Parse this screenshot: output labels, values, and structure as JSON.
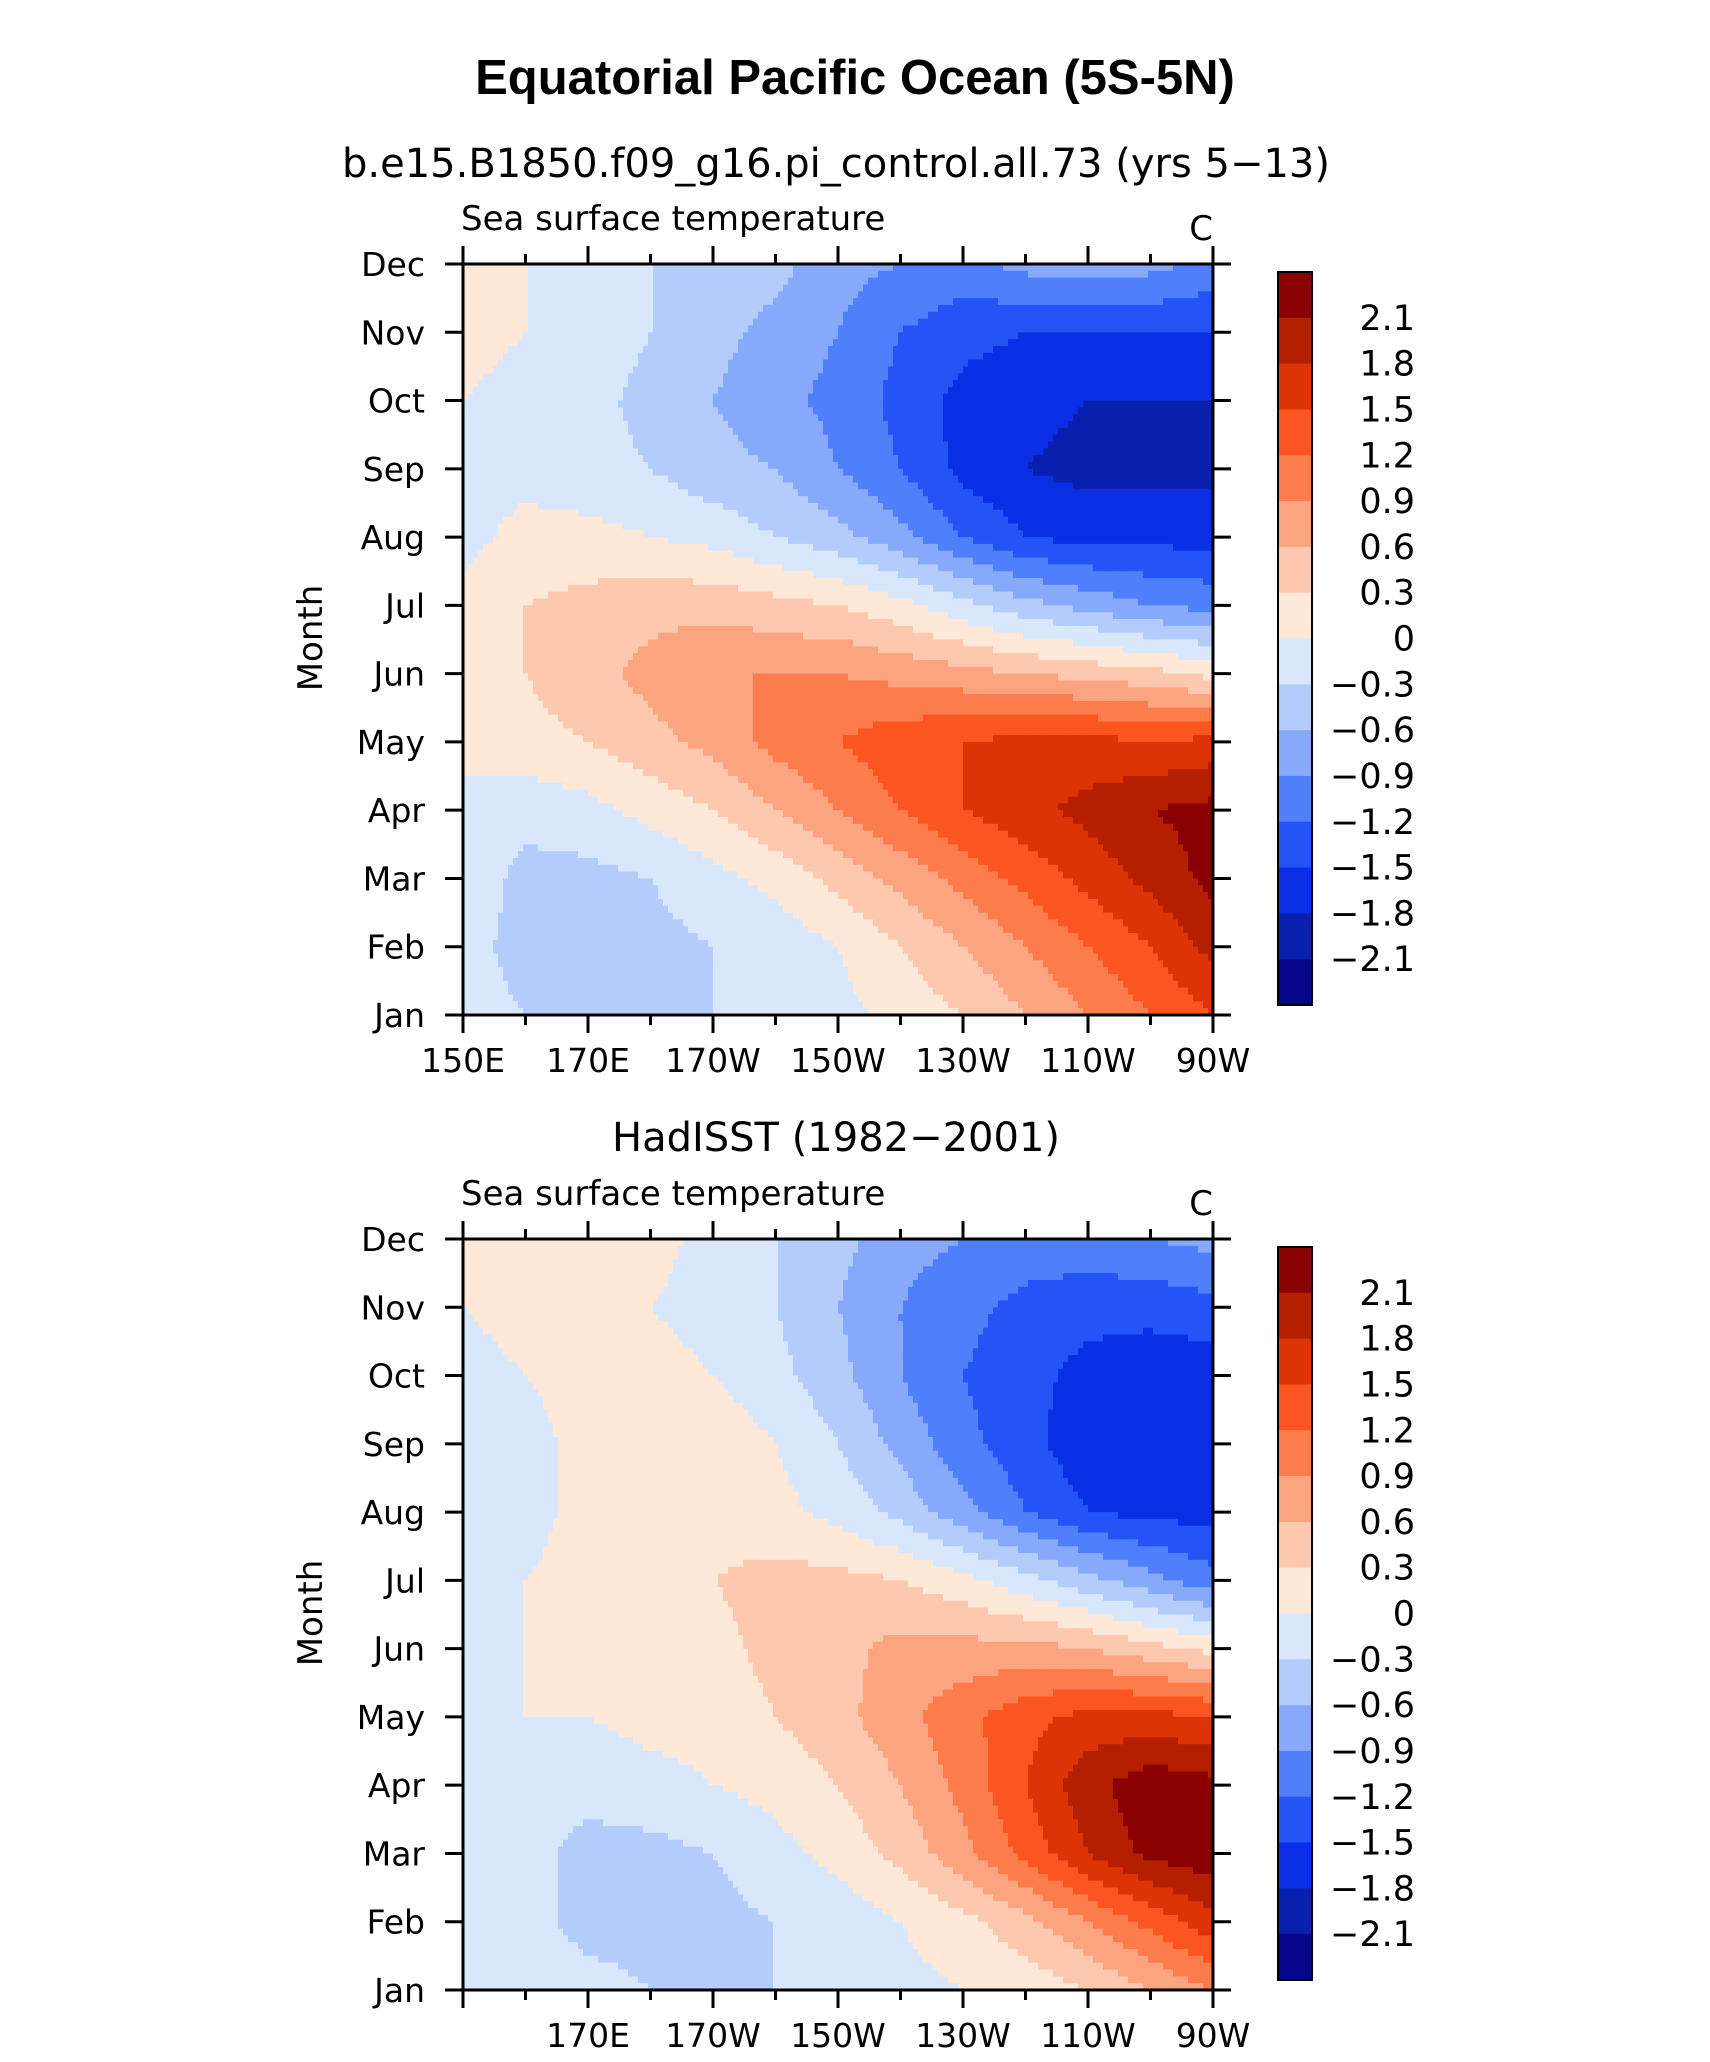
{
  "figure": {
    "title": "Equatorial Pacific Ocean (5S-5N)"
  },
  "colorbar": {
    "levels": [
      -2.1,
      -1.8,
      -1.5,
      -1.2,
      -0.9,
      -0.6,
      -0.3,
      0,
      0.3,
      0.6,
      0.9,
      1.2,
      1.5,
      1.8,
      2.1
    ],
    "labels": [
      "2.1",
      "1.8",
      "1.5",
      "1.2",
      "0.9",
      "0.6",
      "0.3",
      "0",
      "−0.3",
      "−0.6",
      "−0.9",
      "−1.2",
      "−1.5",
      "−1.8",
      "−2.1"
    ],
    "colors_top_to_bottom": [
      "#8b0000",
      "#b41f00",
      "#dc3404",
      "#fb5522",
      "#fd7c4c",
      "#fca47f",
      "#fdc8ad",
      "#fee8d8",
      "#d8e7fc",
      "#b4ccfb",
      "#86a9fb",
      "#4f7ffb",
      "#2553f5",
      "#0a2ee4",
      "#0820ad",
      "#05058a"
    ]
  },
  "panels": [
    {
      "title": "b.e15.B1850.f09_g16.pi_control.all.73 (yrs 5−13)",
      "left_string": "Sea surface temperature",
      "right_string": "C",
      "ylabel": "Month",
      "ytick_labels": [
        "Jan",
        "Feb",
        "Mar",
        "Apr",
        "May",
        "Jun",
        "Jul",
        "Aug",
        "Sep",
        "Oct",
        "Nov",
        "Dec"
      ],
      "xtick_labels": [
        "150E",
        "170E",
        "170W",
        "150W",
        "130W",
        "110W",
        "90W"
      ]
    },
    {
      "title": "HadISST (1982−2001)",
      "left_string": "Sea surface temperature",
      "right_string": "C",
      "ylabel": "Month",
      "ytick_labels": [
        "Jan",
        "Feb",
        "Mar",
        "Apr",
        "May",
        "Jun",
        "Jul",
        "Aug",
        "Sep",
        "Oct",
        "Nov",
        "Dec"
      ],
      "xtick_labels": [
        "",
        "170E",
        "170W",
        "150W",
        "130W",
        "110W",
        "90W"
      ]
    }
  ],
  "chart_data": [
    {
      "type": "heatmap",
      "title": "b.e15.B1850.f09_g16.pi_control.all.73 (yrs 5−13)",
      "variable": "Sea surface temperature",
      "units": "C",
      "xlabel": "",
      "ylabel": "Month",
      "x": [
        150,
        160,
        170,
        180,
        190,
        200,
        210,
        220,
        230,
        240,
        250,
        260,
        270
      ],
      "x_labels_deg": "150=150E, 170=170E, 190=170W, 210=150W, 230=130W, 250=110W, 270=90W",
      "y": [
        "Jan",
        "Feb",
        "Mar",
        "Apr",
        "May",
        "Jun",
        "Jul",
        "Aug",
        "Sep",
        "Oct",
        "Nov",
        "Dec"
      ],
      "xlim": [
        150,
        270
      ],
      "z": [
        [
          -0.2,
          -0.3,
          -0.3,
          -0.3,
          -0.3,
          -0.2,
          -0.1,
          0.1,
          0.3,
          0.6,
          0.9,
          1.2,
          1.5
        ],
        [
          -0.2,
          -0.4,
          -0.4,
          -0.4,
          -0.3,
          -0.2,
          0.0,
          0.3,
          0.6,
          0.9,
          1.2,
          1.5,
          1.9
        ],
        [
          -0.1,
          -0.4,
          -0.4,
          -0.3,
          -0.1,
          0.1,
          0.4,
          0.7,
          1.0,
          1.3,
          1.6,
          1.9,
          2.2
        ],
        [
          -0.1,
          -0.2,
          -0.1,
          0.1,
          0.3,
          0.6,
          0.9,
          1.2,
          1.5,
          1.7,
          1.9,
          2.1,
          2.2
        ],
        [
          0.1,
          0.2,
          0.3,
          0.5,
          0.7,
          1.0,
          1.2,
          1.4,
          1.5,
          1.6,
          1.6,
          1.5,
          1.6
        ],
        [
          0.1,
          0.3,
          0.5,
          0.7,
          0.9,
          0.9,
          0.9,
          0.8,
          0.7,
          0.6,
          0.5,
          0.4,
          0.2
        ],
        [
          0.1,
          0.3,
          0.4,
          0.5,
          0.5,
          0.4,
          0.3,
          0.1,
          -0.2,
          -0.5,
          -0.7,
          -0.9,
          -1.0
        ],
        [
          -0.1,
          0.1,
          0.1,
          0.0,
          -0.1,
          -0.3,
          -0.5,
          -0.8,
          -1.2,
          -1.5,
          -1.6,
          -1.6,
          -1.6
        ],
        [
          -0.1,
          -0.1,
          -0.2,
          -0.3,
          -0.5,
          -0.6,
          -0.9,
          -1.2,
          -1.6,
          -1.8,
          -1.9,
          -1.9,
          -1.9
        ],
        [
          0.0,
          -0.1,
          -0.2,
          -0.4,
          -0.6,
          -0.8,
          -1.0,
          -1.3,
          -1.6,
          -1.7,
          -1.8,
          -1.8,
          -1.8
        ],
        [
          0.1,
          0.0,
          -0.1,
          -0.3,
          -0.5,
          -0.7,
          -0.9,
          -1.2,
          -1.4,
          -1.5,
          -1.5,
          -1.5,
          -1.5
        ],
        [
          0.1,
          0.0,
          -0.2,
          -0.3,
          -0.4,
          -0.5,
          -0.8,
          -0.9,
          -1.0,
          -0.8,
          -0.7,
          -0.8,
          -1.0
        ]
      ]
    },
    {
      "type": "heatmap",
      "title": "HadISST (1982−2001)",
      "variable": "Sea surface temperature",
      "units": "C",
      "xlabel": "",
      "ylabel": "Month",
      "x": [
        150,
        160,
        170,
        180,
        190,
        200,
        210,
        220,
        230,
        240,
        250,
        260,
        270
      ],
      "x_labels_deg": "170=170E, 190=170W, 210=150W, 230=130W, 250=110W, 270=90W",
      "y": [
        "Jan",
        "Feb",
        "Mar",
        "Apr",
        "May",
        "Jun",
        "Jul",
        "Aug",
        "Sep",
        "Oct",
        "Nov",
        "Dec"
      ],
      "xlim": [
        150,
        270
      ],
      "z": [
        [
          0.0,
          -0.1,
          -0.2,
          -0.3,
          -0.3,
          -0.3,
          -0.2,
          -0.1,
          0.0,
          0.1,
          0.3,
          0.6,
          0.9
        ],
        [
          -0.1,
          -0.2,
          -0.4,
          -0.4,
          -0.4,
          -0.3,
          -0.2,
          0.0,
          0.2,
          0.5,
          0.9,
          1.3,
          1.7
        ],
        [
          -0.1,
          -0.2,
          -0.4,
          -0.4,
          -0.3,
          -0.1,
          0.1,
          0.4,
          0.8,
          1.3,
          1.8,
          2.2,
          2.3
        ],
        [
          -0.1,
          -0.2,
          -0.2,
          -0.1,
          0.0,
          0.1,
          0.3,
          0.6,
          1.0,
          1.5,
          2.0,
          2.3,
          2.2
        ],
        [
          -0.1,
          0.0,
          0.0,
          0.1,
          0.1,
          0.3,
          0.5,
          0.8,
          1.1,
          1.4,
          1.6,
          1.6,
          1.5
        ],
        [
          -0.1,
          0.0,
          0.1,
          0.2,
          0.2,
          0.4,
          0.5,
          0.7,
          0.7,
          0.7,
          0.6,
          0.4,
          0.2
        ],
        [
          -0.1,
          0.0,
          0.1,
          0.2,
          0.3,
          0.4,
          0.4,
          0.3,
          0.1,
          -0.2,
          -0.5,
          -0.8,
          -1.1
        ],
        [
          -0.2,
          -0.1,
          0.1,
          0.2,
          0.2,
          0.1,
          -0.1,
          -0.4,
          -0.8,
          -1.2,
          -1.5,
          -1.6,
          -1.6
        ],
        [
          -0.2,
          -0.1,
          0.1,
          0.3,
          0.2,
          0.0,
          -0.3,
          -0.7,
          -1.1,
          -1.4,
          -1.7,
          -1.8,
          -1.8
        ],
        [
          -0.1,
          0.0,
          0.1,
          0.1,
          0.0,
          -0.2,
          -0.5,
          -0.9,
          -1.2,
          -1.4,
          -1.6,
          -1.7,
          -1.7
        ],
        [
          0.0,
          0.1,
          0.1,
          0.0,
          -0.1,
          -0.3,
          -0.6,
          -0.9,
          -1.1,
          -1.3,
          -1.4,
          -1.4,
          -1.3
        ],
        [
          0.1,
          0.1,
          0.1,
          0.1,
          -0.1,
          -0.3,
          -0.5,
          -0.8,
          -0.9,
          -1.0,
          -1.0,
          -0.9,
          -0.8
        ]
      ]
    }
  ]
}
